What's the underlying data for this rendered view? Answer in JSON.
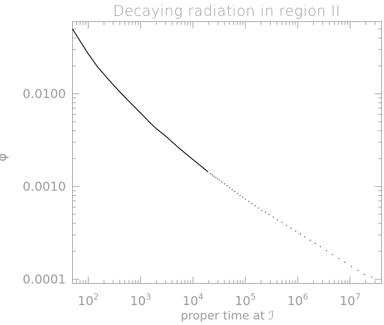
{
  "chart_data": {
    "type": "line",
    "title": "Decaying radiation in region II",
    "xlabel": "proper time at ℐ",
    "ylabel": "φ",
    "x_scale": "log",
    "y_scale": "log",
    "xlim": [
      50,
      40000000
    ],
    "ylim": [
      9e-05,
      0.06
    ],
    "x_ticks": [
      {
        "value": 100,
        "base": "10",
        "exp": "2"
      },
      {
        "value": 1000,
        "base": "10",
        "exp": "3"
      },
      {
        "value": 10000,
        "base": "10",
        "exp": "4"
      },
      {
        "value": 100000,
        "base": "10",
        "exp": "5"
      },
      {
        "value": 1000000,
        "base": "10",
        "exp": "6"
      },
      {
        "value": 10000000,
        "base": "10",
        "exp": "7"
      }
    ],
    "y_ticks": [
      {
        "value": 0.01,
        "label": "0.0100"
      },
      {
        "value": 0.001,
        "label": "0.0010"
      },
      {
        "value": 0.0001,
        "label": "0.0001"
      }
    ],
    "grid": false,
    "series": [
      {
        "color": "#000000",
        "style": "solid-to-dotted",
        "x": [
          50,
          70,
          100,
          150,
          200,
          300,
          500,
          700,
          1000,
          1500,
          2000,
          3000,
          5000,
          7000,
          10000,
          20000,
          50000,
          100000,
          200000,
          500000,
          1000000,
          2000000,
          5000000,
          10000000,
          20000000,
          35000000
        ],
        "y": [
          0.05,
          0.037,
          0.027,
          0.0196,
          0.0162,
          0.0125,
          0.0092,
          0.0076,
          0.0062,
          0.0049,
          0.0042,
          0.0035,
          0.0027,
          0.0023,
          0.00195,
          0.00142,
          0.00097,
          0.00073,
          0.00056,
          0.00041,
          0.00032,
          0.00025,
          0.00018,
          0.00014,
          0.00011,
          0.0001
        ]
      }
    ]
  }
}
